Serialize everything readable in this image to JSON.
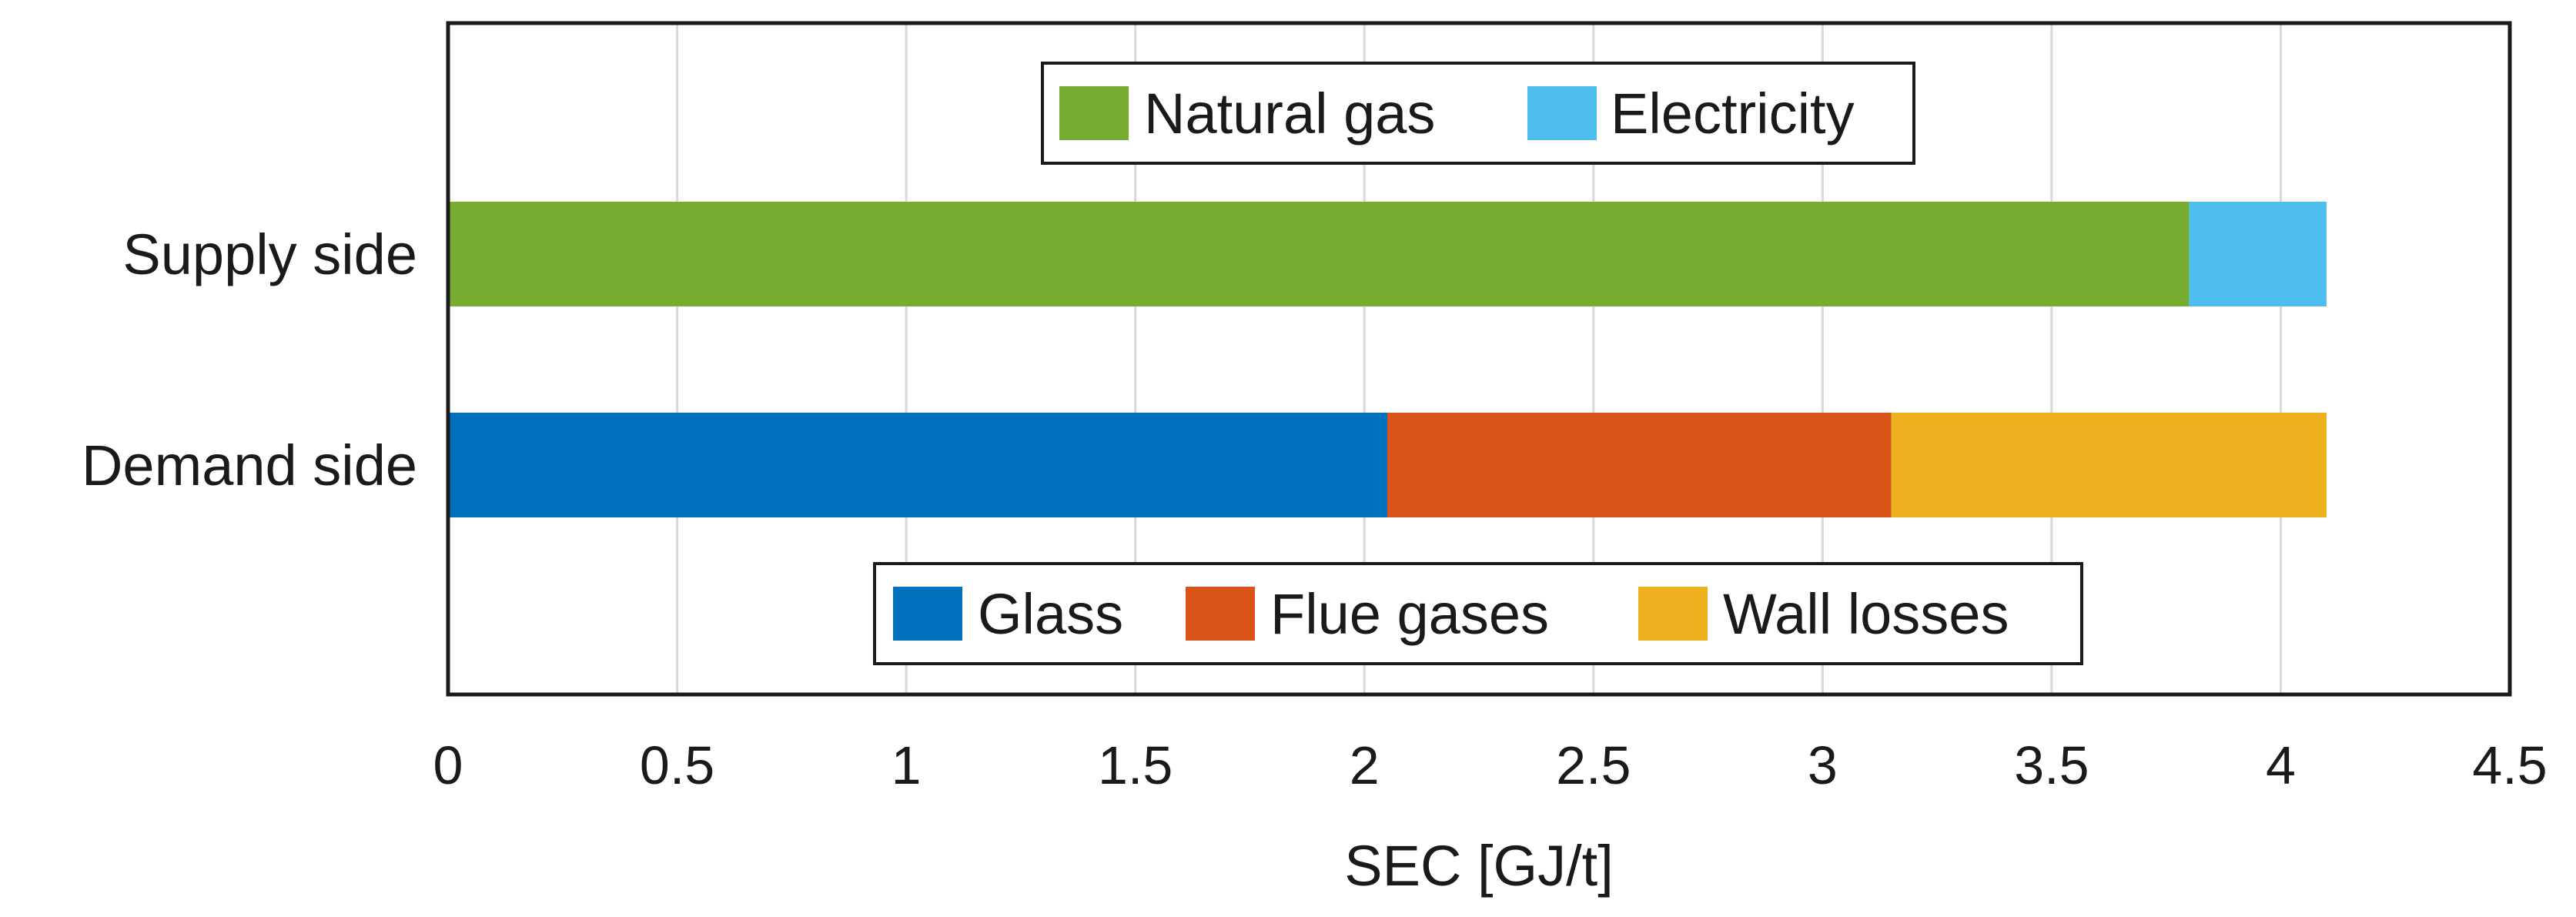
{
  "chart_data": {
    "type": "bar",
    "orientation": "horizontal",
    "stacked": true,
    "xlabel": "SEC [GJ/t]",
    "ylabel": "",
    "xlim": [
      0,
      4.5
    ],
    "xticks": [
      "0",
      "0.5",
      "1",
      "1.5",
      "2",
      "2.5",
      "3",
      "3.5",
      "4",
      "4.5"
    ],
    "grid": "vertical",
    "categories": [
      "Supply side",
      "Demand side"
    ],
    "bars": [
      {
        "category": "Supply side",
        "segments": [
          {
            "name": "Natural gas",
            "value": 3.8,
            "color": "#77ac30"
          },
          {
            "name": "Electricity",
            "value": 0.3,
            "color": "#4dbeee"
          }
        ]
      },
      {
        "category": "Demand side",
        "segments": [
          {
            "name": "Glass",
            "value": 2.05,
            "color": "#0072bd"
          },
          {
            "name": "Flue gases",
            "value": 1.1,
            "color": "#d95319"
          },
          {
            "name": "Wall losses",
            "value": 0.95,
            "color": "#edb120"
          }
        ]
      }
    ],
    "legends": [
      {
        "placement": "top-center",
        "entries": [
          {
            "label": "Natural gas",
            "color": "#77ac30"
          },
          {
            "label": "Electricity",
            "color": "#4dbeee"
          }
        ]
      },
      {
        "placement": "bottom-center",
        "entries": [
          {
            "label": "Glass",
            "color": "#0072bd"
          },
          {
            "label": "Flue gases",
            "color": "#d95319"
          },
          {
            "label": "Wall losses",
            "color": "#edb120"
          }
        ]
      }
    ]
  }
}
